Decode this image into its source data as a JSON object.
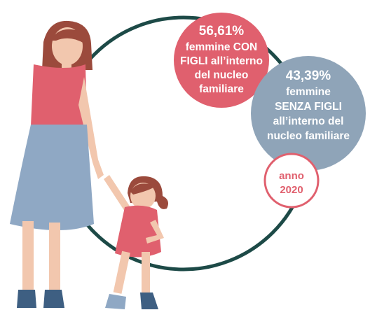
{
  "bubbles": [
    {
      "value": "56,61%",
      "lines": [
        "femmine CON",
        "FIGLI all’interno",
        "del nucleo",
        "familiare"
      ]
    },
    {
      "value": "43,39%",
      "lines": [
        "femmine",
        "SENZA FIGLI",
        "all’interno del",
        "nucleo familiare"
      ]
    }
  ],
  "year": {
    "lines": [
      "anno",
      "2020"
    ]
  }
}
